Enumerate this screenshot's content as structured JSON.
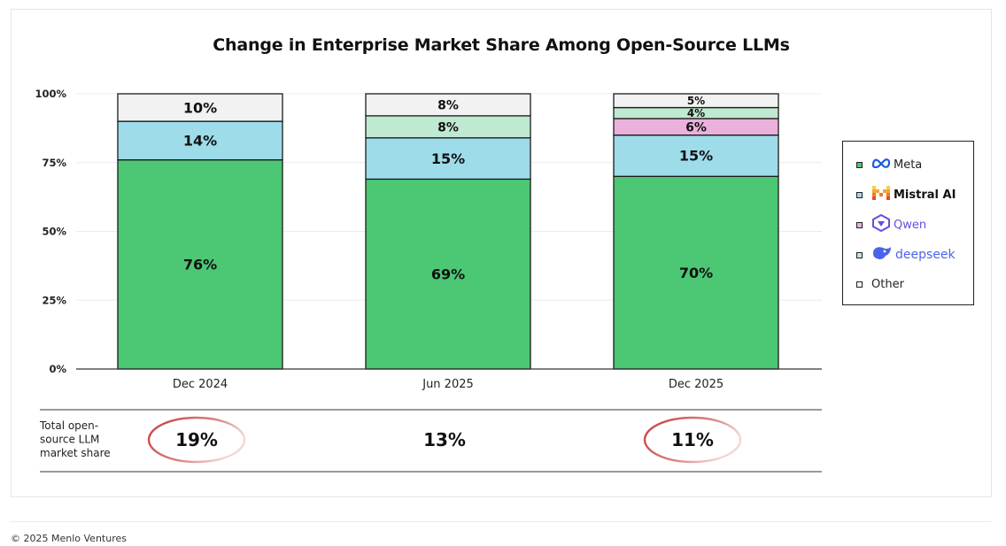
{
  "chart_data": {
    "type": "bar",
    "stacked": true,
    "title": "Change in Enterprise Market Share Among Open-Source LLMs",
    "categories": [
      "Dec 2024",
      "Jun 2025",
      "Dec 2025"
    ],
    "yticks": [
      "0%",
      "25%",
      "50%",
      "75%",
      "100%"
    ],
    "ylim": [
      0,
      100
    ],
    "series": [
      {
        "name": "Meta",
        "color": "#4cc774",
        "values": [
          76,
          69,
          70
        ],
        "labels": [
          "76%",
          "69%",
          "70%"
        ]
      },
      {
        "name": "Mistral AI",
        "color": "#9edcea",
        "values": [
          14,
          15,
          15
        ],
        "labels": [
          "14%",
          "15%",
          "15%"
        ]
      },
      {
        "name": "Qwen",
        "color": "#ebb1dc",
        "values": [
          0,
          0,
          6
        ],
        "labels": [
          "",
          "",
          "6%"
        ]
      },
      {
        "name": "deepseek",
        "color": "#bfead1",
        "values": [
          0,
          8,
          4
        ],
        "labels": [
          "",
          "8%",
          "4%"
        ]
      },
      {
        "name": "Other",
        "color": "#f2f2f2",
        "values": [
          10,
          8,
          5
        ],
        "labels": [
          "10%",
          "8%",
          "5%"
        ]
      }
    ],
    "footer": {
      "label_lines": [
        "Total open-",
        "source LLM",
        "market share"
      ],
      "values": [
        "19%",
        "13%",
        "11%"
      ],
      "circled": [
        true,
        false,
        true
      ]
    }
  },
  "legend": {
    "items": [
      {
        "name": "Meta",
        "icon": "meta-logo-icon",
        "color": "#4cc774"
      },
      {
        "name": "Mistral AI",
        "icon": "mistral-logo-icon",
        "color": "#9edcea"
      },
      {
        "name": "Qwen",
        "icon": "qwen-logo-icon",
        "color": "#ebb1dc"
      },
      {
        "name": "deepseek",
        "icon": "deepseek-logo-icon",
        "color": "#bfead1"
      },
      {
        "name": "Other",
        "icon": "",
        "color": "#f2f2f2"
      }
    ]
  },
  "copyright": "© 2025 Menlo Ventures"
}
